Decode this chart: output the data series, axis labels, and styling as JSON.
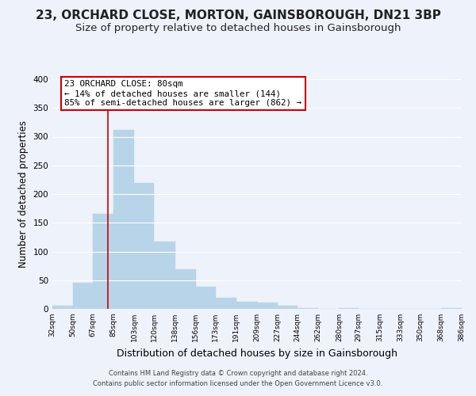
{
  "title": "23, ORCHARD CLOSE, MORTON, GAINSBOROUGH, DN21 3BP",
  "subtitle": "Size of property relative to detached houses in Gainsborough",
  "xlabel": "Distribution of detached houses by size in Gainsborough",
  "ylabel": "Number of detached properties",
  "bar_edges": [
    32,
    50,
    67,
    85,
    103,
    120,
    138,
    156,
    173,
    191,
    209,
    227,
    244,
    262,
    280,
    297,
    315,
    333,
    350,
    368,
    386
  ],
  "bar_heights": [
    5,
    46,
    165,
    312,
    219,
    117,
    69,
    38,
    19,
    13,
    11,
    5,
    1,
    0,
    1,
    0,
    0,
    0,
    0,
    2
  ],
  "bar_color": "#b8d4e8",
  "bar_edge_color": "#b8d4e8",
  "vline_x": 80,
  "vline_color": "#cc0000",
  "ylim": [
    0,
    400
  ],
  "yticks": [
    0,
    50,
    100,
    150,
    200,
    250,
    300,
    350,
    400
  ],
  "annotation_title": "23 ORCHARD CLOSE: 80sqm",
  "annotation_line1": "← 14% of detached houses are smaller (144)",
  "annotation_line2": "85% of semi-detached houses are larger (862) →",
  "footnote1": "Contains HM Land Registry data © Crown copyright and database right 2024.",
  "footnote2": "Contains public sector information licensed under the Open Government Licence v3.0.",
  "background_color": "#eef2fb",
  "plot_bg_color": "#eef2fb",
  "grid_color": "white",
  "title_fontsize": 11,
  "subtitle_fontsize": 9.5,
  "xlabel_fontsize": 9,
  "ylabel_fontsize": 8.5,
  "tick_labels": [
    "32sqm",
    "50sqm",
    "67sqm",
    "85sqm",
    "103sqm",
    "120sqm",
    "138sqm",
    "156sqm",
    "173sqm",
    "191sqm",
    "209sqm",
    "227sqm",
    "244sqm",
    "262sqm",
    "280sqm",
    "297sqm",
    "315sqm",
    "333sqm",
    "350sqm",
    "368sqm",
    "386sqm"
  ]
}
